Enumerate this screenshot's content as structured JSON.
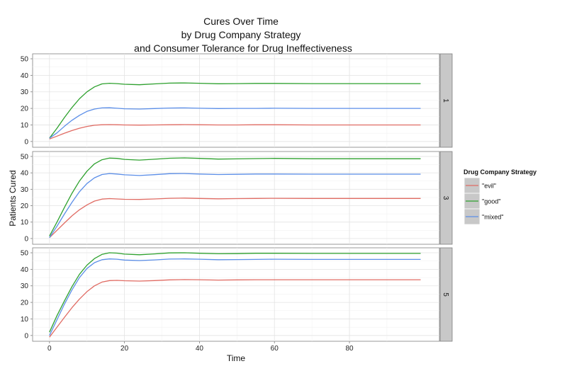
{
  "chart_data": {
    "type": "line",
    "title": [
      "Cures Over Time",
      "by Drug Company Strategy",
      "and Consumer Tolerance for Drug Ineffectiveness"
    ],
    "xlabel": "Time",
    "ylabel": "Patients Cured",
    "xlim": [
      -4.5,
      104
    ],
    "ylim": [
      -3.5,
      53
    ],
    "x_ticks": [
      0,
      20,
      40,
      60,
      80
    ],
    "y_ticks": [
      0,
      10,
      20,
      30,
      40,
      50
    ],
    "grid": true,
    "legend": {
      "title": "Drug Company Strategy",
      "position": "right",
      "entries": [
        "\"evil\"",
        "\"good\"",
        "\"mixed\""
      ]
    },
    "colors": {
      "evil": "#e06b63",
      "good": "#2ea12e",
      "mixed": "#5b8ee8"
    },
    "x": [
      0,
      2,
      4,
      6,
      8,
      10,
      12,
      14,
      16,
      18,
      20,
      24,
      28,
      32,
      36,
      40,
      45,
      50,
      55,
      60,
      70,
      80,
      90,
      99
    ],
    "panels": [
      {
        "strip_label": "1",
        "series": [
          {
            "name": "\"evil\"",
            "values": [
              1.5,
              3.2,
              5.0,
              6.6,
              8.0,
              9.1,
              9.8,
              10.1,
              10.2,
              10.1,
              10.0,
              9.9,
              10.0,
              10.1,
              10.2,
              10.1,
              10.0,
              10.0,
              10.1,
              10.1,
              10.0,
              10.0,
              10.0,
              10.0
            ]
          },
          {
            "name": "\"good\"",
            "values": [
              2.0,
              8.0,
              14.5,
              20.5,
              25.8,
              30.0,
              33.0,
              34.8,
              35.2,
              35.0,
              34.6,
              34.3,
              34.8,
              35.3,
              35.4,
              35.2,
              34.9,
              35.0,
              35.1,
              35.1,
              35.0,
              35.0,
              35.0,
              35.0
            ]
          },
          {
            "name": "\"mixed\"",
            "values": [
              2.0,
              5.2,
              9.2,
              12.8,
              15.8,
              18.2,
              19.6,
              20.3,
              20.4,
              20.1,
              19.8,
              19.6,
              19.9,
              20.2,
              20.3,
              20.1,
              19.9,
              20.0,
              20.0,
              20.1,
              20.0,
              20.0,
              20.0,
              20.0
            ]
          }
        ]
      },
      {
        "strip_label": "3",
        "series": [
          {
            "name": "\"evil\"",
            "values": [
              0.5,
              5.0,
              9.5,
              13.8,
              17.5,
              20.5,
              22.8,
              24.0,
              24.3,
              24.1,
              23.9,
              23.8,
              24.1,
              24.5,
              24.6,
              24.4,
              24.2,
              24.3,
              24.4,
              24.5,
              24.4,
              24.4,
              24.4,
              24.4
            ]
          },
          {
            "name": "\"good\"",
            "values": [
              1.5,
              10.0,
              19.0,
              27.5,
              35.0,
              41.0,
              45.5,
              48.0,
              49.0,
              48.8,
              48.2,
              47.8,
              48.3,
              48.9,
              49.1,
              48.8,
              48.4,
              48.5,
              48.7,
              48.8,
              48.6,
              48.6,
              48.6,
              48.6
            ]
          },
          {
            "name": "\"mixed\"",
            "values": [
              0.5,
              7.5,
              15.0,
              22.0,
              28.5,
              33.5,
              37.0,
              39.0,
              39.6,
              39.3,
              38.8,
              38.4,
              38.9,
              39.5,
              39.6,
              39.3,
              39.0,
              39.1,
              39.3,
              39.3,
              39.2,
              39.2,
              39.2,
              39.2
            ]
          }
        ]
      },
      {
        "strip_label": "5",
        "series": [
          {
            "name": "\"evil\"",
            "values": [
              -1.0,
              5.0,
              11.0,
              16.8,
              22.0,
              26.5,
              30.0,
              32.3,
              33.2,
              33.3,
              33.1,
              32.9,
              33.2,
              33.6,
              33.8,
              33.7,
              33.5,
              33.6,
              33.7,
              33.7,
              33.7,
              33.7,
              33.7,
              33.7
            ]
          },
          {
            "name": "\"good\"",
            "values": [
              2.0,
              12.0,
              21.0,
              29.5,
              37.0,
              42.5,
              46.5,
              49.0,
              50.0,
              49.8,
              49.2,
              48.8,
              49.3,
              49.9,
              50.0,
              49.7,
              49.4,
              49.5,
              49.7,
              49.7,
              49.6,
              49.6,
              49.6,
              49.6
            ]
          },
          {
            "name": "\"mixed\"",
            "values": [
              0.0,
              9.5,
              19.0,
              27.5,
              35.0,
              40.5,
              44.0,
              45.8,
              46.3,
              46.1,
              45.6,
              45.3,
              45.7,
              46.2,
              46.3,
              46.1,
              45.8,
              45.9,
              46.0,
              46.1,
              46.0,
              46.0,
              46.0,
              46.0
            ]
          }
        ]
      }
    ]
  }
}
